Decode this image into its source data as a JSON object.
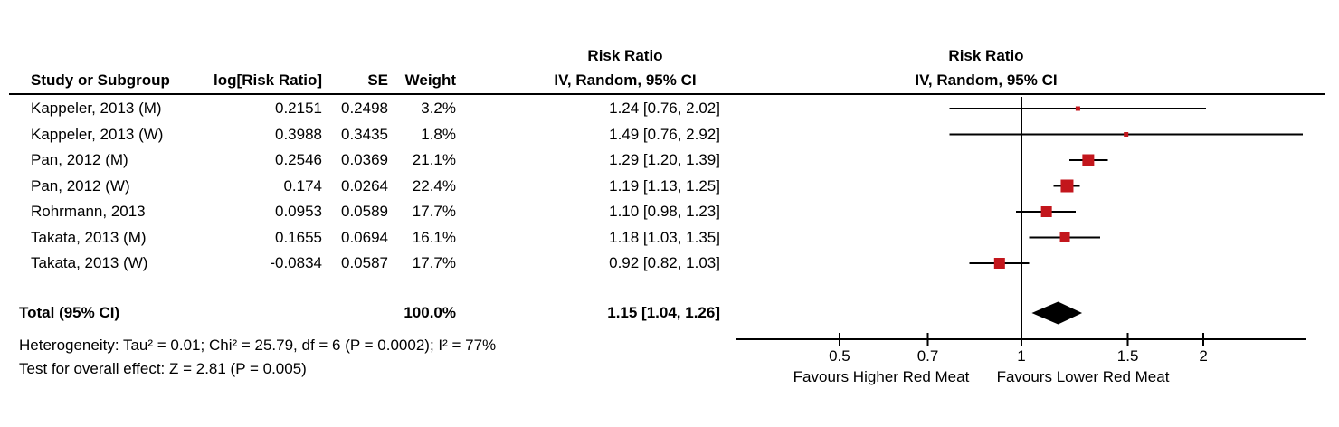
{
  "columns": {
    "study": "Study or Subgroup",
    "log_rr": "log[Risk Ratio]",
    "se": "SE",
    "weight": "Weight",
    "effect_header_line1": "Risk Ratio",
    "effect_header_line2": "IV, Random, 95% CI",
    "plot_header_line1": "Risk Ratio",
    "plot_header_line2": "IV, Random, 95% CI"
  },
  "chart_data": {
    "type": "forest",
    "effect_measure": "Risk Ratio",
    "model": "IV, Random, 95% CI",
    "x_scale": "log",
    "axis_ticks": [
      "0.5",
      "0.7",
      "1",
      "1.5",
      "2"
    ],
    "x_range": [
      0.34,
      2.95
    ],
    "null_line": 1,
    "favours_left": "Favours Higher Red Meat",
    "favours_right": "Favours Lower Red Meat",
    "studies": [
      {
        "name": "Kappeler, 2013 (M)",
        "log_rr": "0.2151",
        "se": "0.2498",
        "weight": "3.2%",
        "rr": 1.24,
        "ci_low": 0.76,
        "ci_high": 2.02,
        "ci_text": "1.24 [0.76, 2.02]"
      },
      {
        "name": "Kappeler, 2013 (W)",
        "log_rr": "0.3988",
        "se": "0.3435",
        "weight": "1.8%",
        "rr": 1.49,
        "ci_low": 0.76,
        "ci_high": 2.92,
        "ci_text": "1.49 [0.76, 2.92]"
      },
      {
        "name": "Pan, 2012 (M)",
        "log_rr": "0.2546",
        "se": "0.0369",
        "weight": "21.1%",
        "rr": 1.29,
        "ci_low": 1.2,
        "ci_high": 1.39,
        "ci_text": "1.29 [1.20, 1.39]"
      },
      {
        "name": "Pan, 2012 (W)",
        "log_rr": "0.174",
        "se": "0.0264",
        "weight": "22.4%",
        "rr": 1.19,
        "ci_low": 1.13,
        "ci_high": 1.25,
        "ci_text": "1.19 [1.13, 1.25]"
      },
      {
        "name": "Rohrmann, 2013",
        "log_rr": "0.0953",
        "se": "0.0589",
        "weight": "17.7%",
        "rr": 1.1,
        "ci_low": 0.98,
        "ci_high": 1.23,
        "ci_text": "1.10 [0.98, 1.23]"
      },
      {
        "name": "Takata, 2013 (M)",
        "log_rr": "0.1655",
        "se": "0.0694",
        "weight": "16.1%",
        "rr": 1.18,
        "ci_low": 1.03,
        "ci_high": 1.35,
        "ci_text": "1.18 [1.03, 1.35]"
      },
      {
        "name": "Takata, 2013 (W)",
        "log_rr": "-0.0834",
        "se": "0.0587",
        "weight": "17.7%",
        "rr": 0.92,
        "ci_low": 0.82,
        "ci_high": 1.03,
        "ci_text": "0.92 [0.82, 1.03]"
      }
    ],
    "total": {
      "label": "Total (95% CI)",
      "weight": "100.0%",
      "rr": 1.15,
      "ci_low": 1.04,
      "ci_high": 1.26,
      "ci_text": "1.15 [1.04, 1.26]"
    },
    "footnotes": {
      "heterogeneity": "Heterogeneity: Tau² = 0.01; Chi² = 25.79, df = 6 (P = 0.0002); I² = 77%",
      "overall_effect": "Test for overall effect: Z = 2.81 (P = 0.005)"
    },
    "colors": {
      "marker": "#C3161C",
      "line": "#000000",
      "diamond": "#000000",
      "text": "#000000"
    }
  }
}
